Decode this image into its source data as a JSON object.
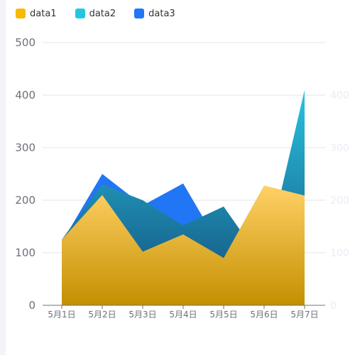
{
  "chart_data": {
    "type": "area",
    "categories": [
      "5月1日",
      "5月2日",
      "5月3日",
      "5月4日",
      "5月5日",
      "5月6日",
      "5月7日"
    ],
    "series": [
      {
        "name": "data1",
        "color": "#fbc531",
        "values": [
          125,
          210,
          102,
          135,
          90,
          228,
          209
        ]
      },
      {
        "name": "data2",
        "color": "#23c6e0",
        "values": [
          125,
          230,
          200,
          152,
          188,
          78,
          410
        ]
      },
      {
        "name": "data3",
        "color": "#2076f5",
        "values": [
          120,
          250,
          190,
          232,
          100,
          100,
          200
        ]
      }
    ],
    "y_ticks": [
      0,
      100,
      200,
      300,
      400,
      500
    ],
    "y_ticks_right": [
      0,
      100,
      200,
      300,
      400
    ],
    "ylim": [
      0,
      500
    ],
    "grid": true,
    "legend": "top-left"
  }
}
